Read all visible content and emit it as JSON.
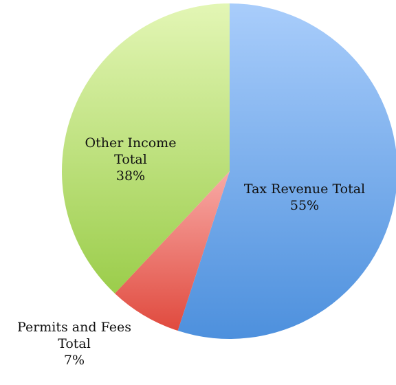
{
  "chart_data": {
    "type": "pie",
    "title": "",
    "start_angle_deg": 0,
    "direction": "clockwise",
    "slices": [
      {
        "category_lines": [
          "Tax Revenue Total"
        ],
        "percent_label": "55%",
        "value": 55,
        "color_top": "#a9cdfb",
        "color_bottom": "#4d90dd"
      },
      {
        "category_lines": [
          "Permits and Fees",
          "Total"
        ],
        "percent_label": "7%",
        "value": 7,
        "color_top": "#f8aaa6",
        "color_bottom": "#e04a3e"
      },
      {
        "category_lines": [
          "Other Income",
          "Total"
        ],
        "percent_label": "38%",
        "value": 38,
        "color_top": "#e3f6b5",
        "color_bottom": "#9bcd4b"
      }
    ],
    "legend": "none",
    "data_labels": "category and percent"
  }
}
